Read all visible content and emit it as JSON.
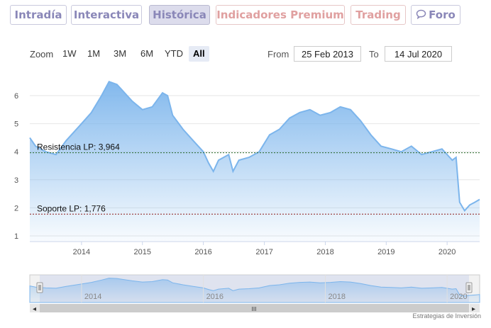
{
  "tabs": [
    {
      "label": "Intradía",
      "style": "purple"
    },
    {
      "label": "Interactiva",
      "style": "purple"
    },
    {
      "label": "Histórica",
      "style": "purple active"
    },
    {
      "label": "Indicadores Premium",
      "style": "red"
    },
    {
      "label": "Trading",
      "style": "red"
    },
    {
      "label": "Foro",
      "style": "purple",
      "icon": "chat-bubble-icon"
    }
  ],
  "toolbar": {
    "zoom_label": "Zoom",
    "zoom_buttons": [
      "1W",
      "1M",
      "3M",
      "6M",
      "YTD",
      "All"
    ],
    "selected": "All",
    "from_label": "From",
    "from_value": "25 Feb 2013",
    "to_label": "To",
    "to_value": "14 Jul 2020"
  },
  "colors": {
    "line": "#7cb5ec",
    "tab_purple": "#8a87b8",
    "tab_red": "#e0a0a0",
    "resistance": "#2a6a2a",
    "support": "#8b1a1a"
  },
  "chart_data": {
    "type": "area",
    "x_tick_labels": [
      "2014",
      "2015",
      "2016",
      "2017",
      "2018",
      "2019",
      "2020"
    ],
    "y_tick_labels": [
      "1",
      "2",
      "3",
      "4",
      "5",
      "6"
    ],
    "xlim": [
      "2013-02-25",
      "2020-07-14"
    ],
    "ylim": [
      1,
      6.6
    ],
    "grid": true,
    "series": [
      {
        "x": [
          "2013-02-25",
          "2013-04-01",
          "2013-06-01",
          "2013-08-01",
          "2013-10-01",
          "2014-01-01",
          "2014-03-01",
          "2014-05-01",
          "2014-06-15",
          "2014-08-01",
          "2014-09-01",
          "2014-11-01",
          "2015-01-01",
          "2015-03-01",
          "2015-05-01",
          "2015-06-01",
          "2015-07-01",
          "2015-09-01",
          "2015-11-01",
          "2016-01-01",
          "2016-02-01",
          "2016-03-01",
          "2016-04-01",
          "2016-06-01",
          "2016-06-27",
          "2016-08-01",
          "2016-10-01",
          "2016-12-01",
          "2017-02-01",
          "2017-04-01",
          "2017-06-01",
          "2017-08-01",
          "2017-10-01",
          "2017-12-01",
          "2018-02-01",
          "2018-04-01",
          "2018-06-01",
          "2018-08-01",
          "2018-10-01",
          "2018-12-01",
          "2019-02-01",
          "2019-04-01",
          "2019-06-01",
          "2019-08-01",
          "2019-10-01",
          "2019-12-01",
          "2020-02-01",
          "2020-02-24",
          "2020-03-16",
          "2020-04-15",
          "2020-05-15",
          "2020-06-15",
          "2020-07-14"
        ],
        "y": [
          4.5,
          4.2,
          4.0,
          3.9,
          4.4,
          5.0,
          5.4,
          6.0,
          6.5,
          6.4,
          6.2,
          5.8,
          5.5,
          5.6,
          6.1,
          6.0,
          5.3,
          4.8,
          4.4,
          4.0,
          3.6,
          3.3,
          3.7,
          3.9,
          3.3,
          3.7,
          3.8,
          4.0,
          4.6,
          4.8,
          5.2,
          5.4,
          5.5,
          5.3,
          5.4,
          5.6,
          5.5,
          5.1,
          4.6,
          4.2,
          4.1,
          4.0,
          4.2,
          3.9,
          4.0,
          4.1,
          3.7,
          3.8,
          2.2,
          1.9,
          2.1,
          2.2,
          2.3
        ]
      }
    ],
    "plotlines": [
      {
        "label": "Resistencia LP: 3,964",
        "value": 3.964
      },
      {
        "label": "Soporte LP: 1,776",
        "value": 1.776
      }
    ],
    "navigator_tick_labels": [
      "2014",
      "2016",
      "2018",
      "2020"
    ]
  },
  "credit": "Estrategias de Inversión",
  "scrollbar": {
    "left_arrow": "◂",
    "right_arrow": "▸",
    "grip": "III"
  }
}
